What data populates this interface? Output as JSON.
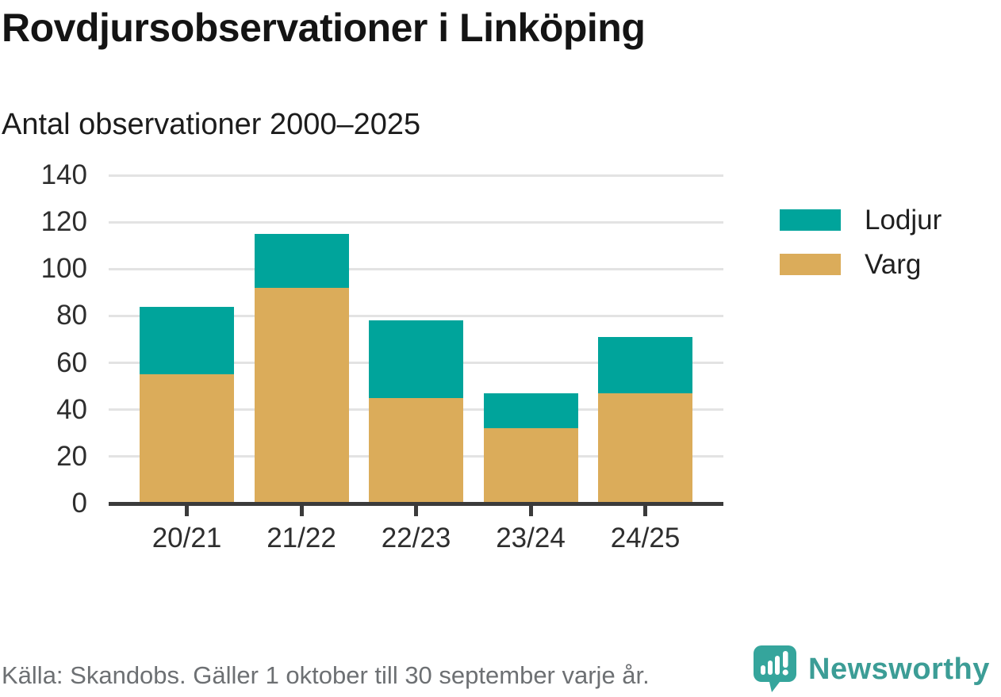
{
  "header": {
    "title": "Rovdjursobservationer i Linköping",
    "subtitle": "Antal observationer 2000–2025"
  },
  "chart_data": {
    "type": "bar",
    "stacked": true,
    "title": "Rovdjursobservationer i Linköping",
    "subtitle": "Antal observationer 2000–2025",
    "categories": [
      "20/21",
      "21/22",
      "22/23",
      "23/24",
      "24/25"
    ],
    "series": [
      {
        "name": "Varg",
        "color": "#dbac5a",
        "values": [
          55,
          92,
          45,
          32,
          47
        ]
      },
      {
        "name": "Lodjur",
        "color": "#00a49b",
        "values": [
          29,
          23,
          33,
          15,
          24
        ]
      }
    ],
    "stack_totals": [
      84,
      115,
      78,
      47,
      71
    ],
    "ylim": [
      0,
      140
    ],
    "yticks": [
      0,
      20,
      40,
      60,
      80,
      100,
      120,
      140
    ],
    "xlabel": "",
    "ylabel": "",
    "grid": true,
    "legend_position": "right"
  },
  "legend": {
    "items": [
      {
        "label": "Lodjur",
        "color": "#00a49b"
      },
      {
        "label": "Varg",
        "color": "#dbac5a"
      }
    ]
  },
  "footer": {
    "source": "Källa: Skandobs. Gäller 1 oktober till 30 september varje år.",
    "brand": "Newsworthy"
  },
  "icons": {
    "newsworthy-logo-icon": "speech-bubble with white mini bar chart and exclamation mark"
  },
  "colors": {
    "lodjur_teal": "#00a49b",
    "varg_gold": "#dbac5a",
    "gridline": "#e3e3e3",
    "axis": "#3b3b3b",
    "footer_text": "#6d7073",
    "brand_teal": "#3c9d96"
  }
}
